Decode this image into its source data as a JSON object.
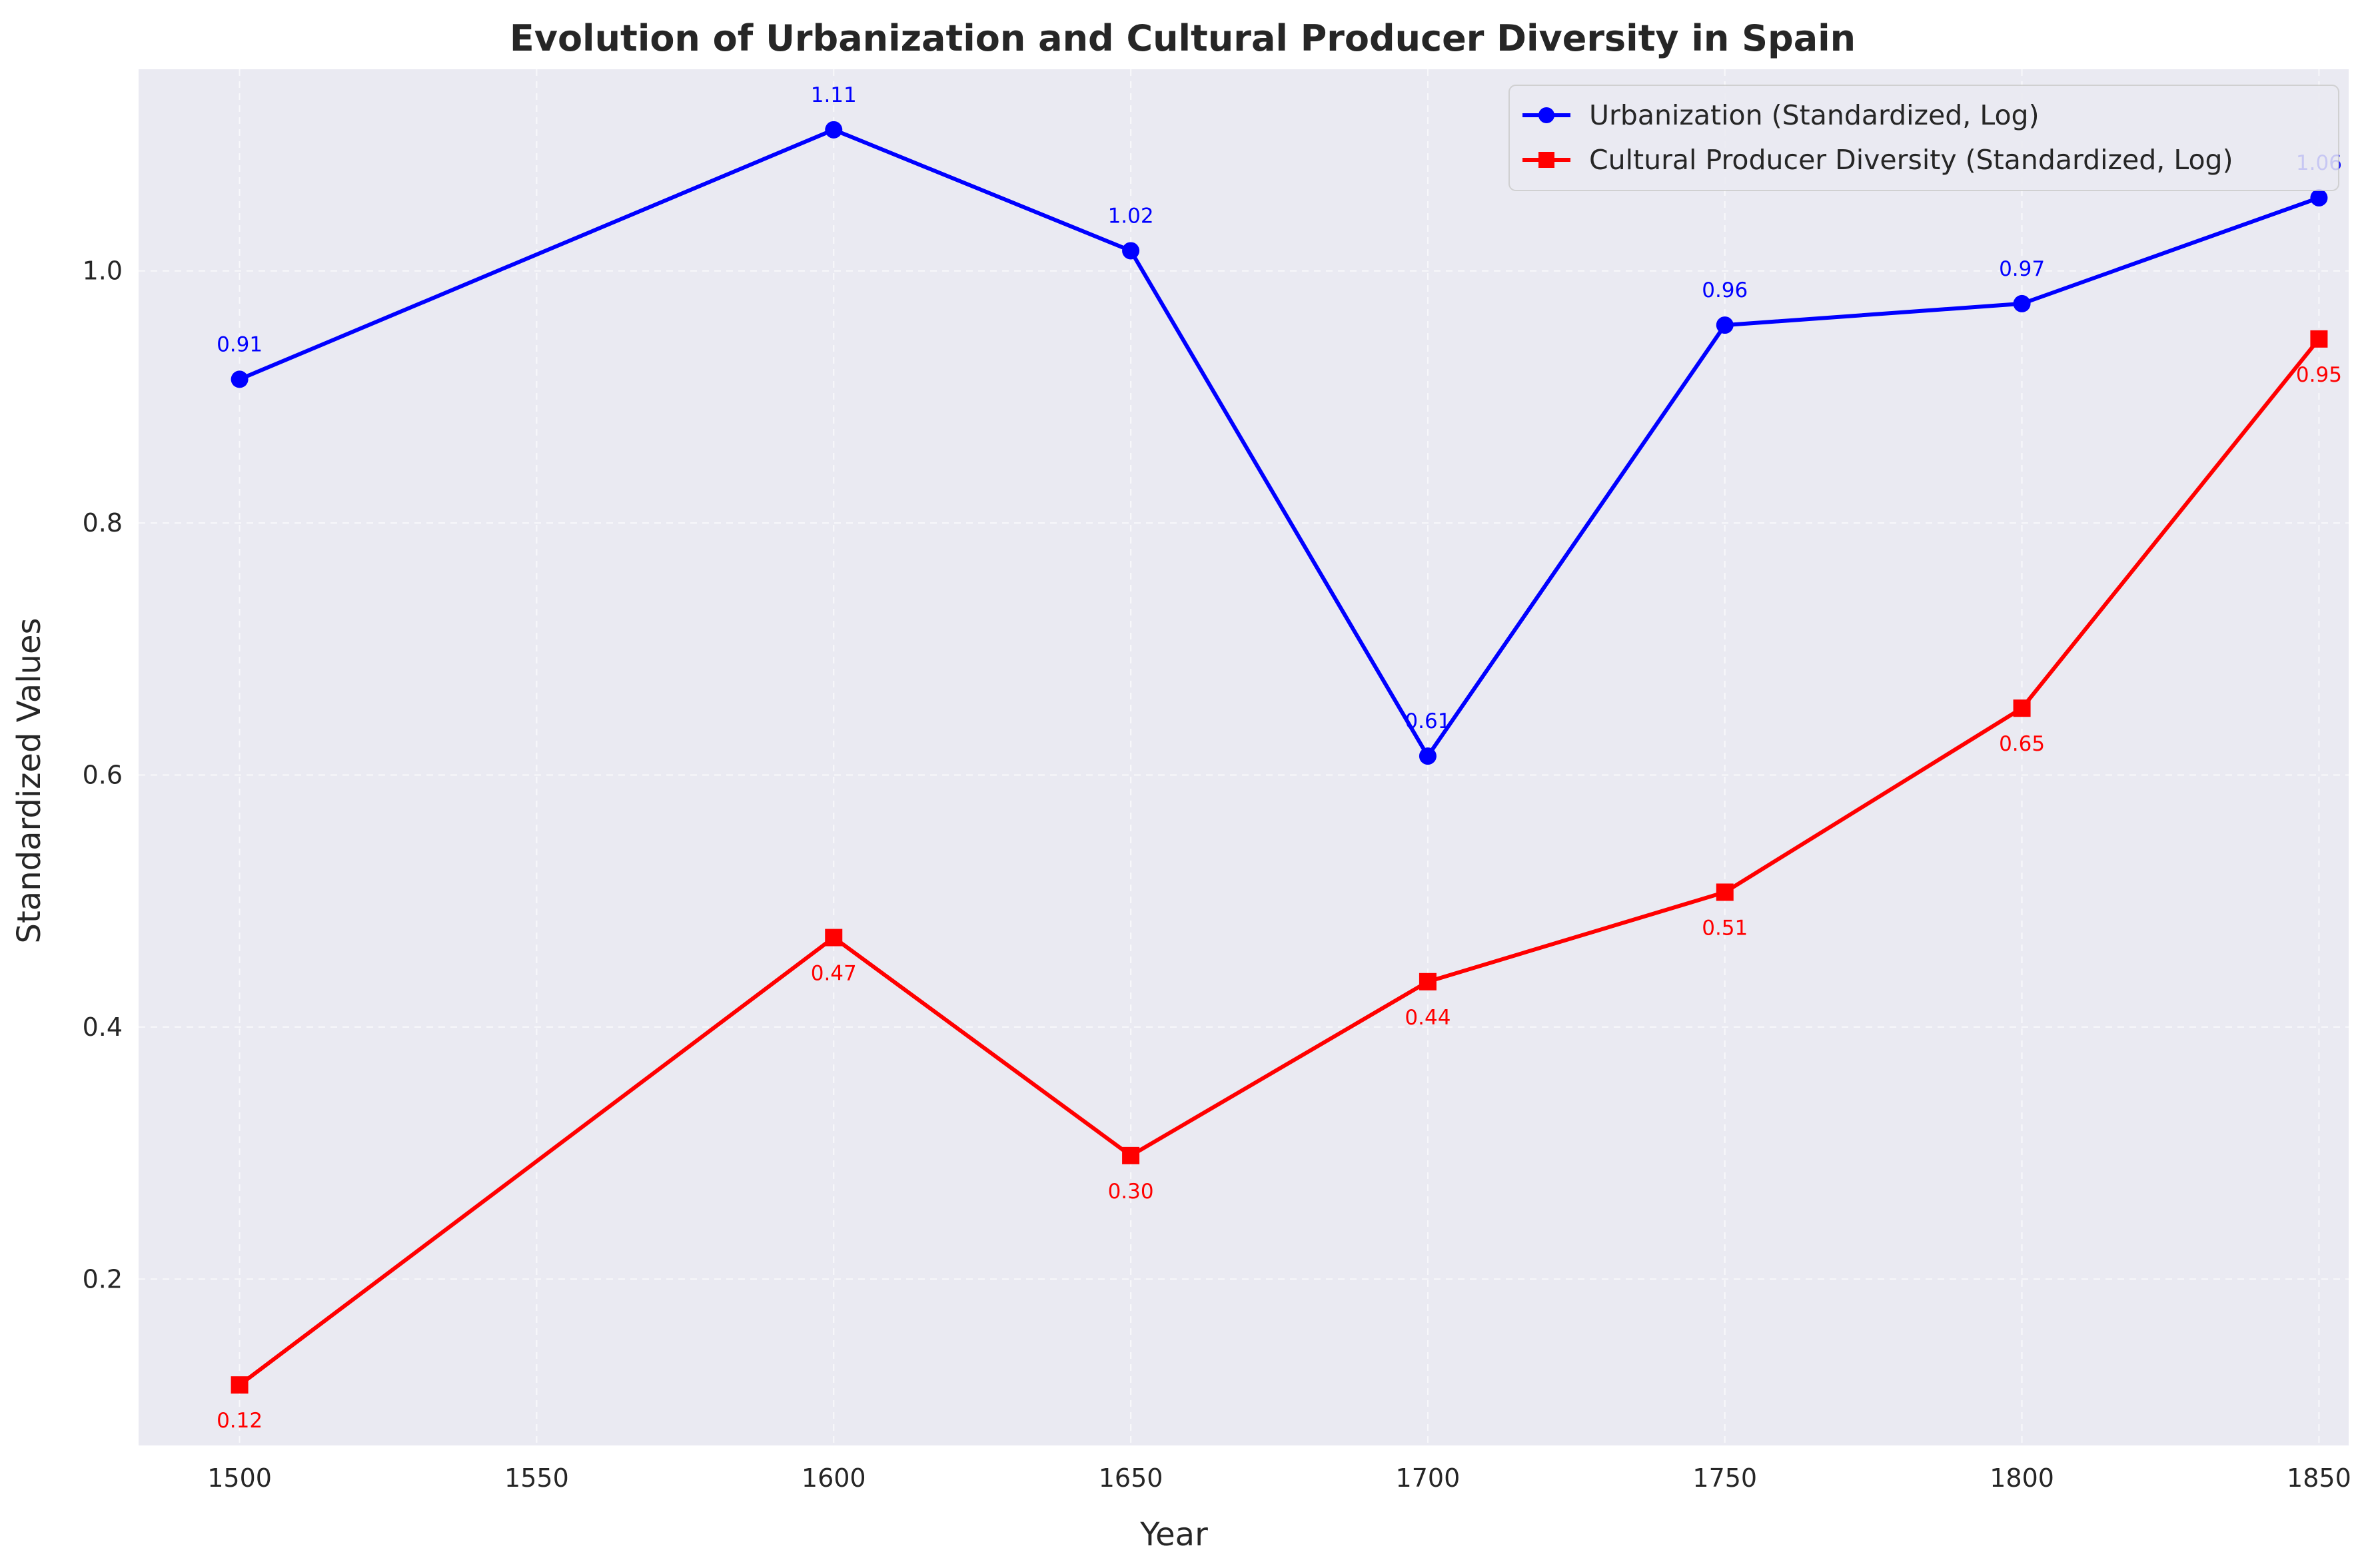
{
  "chart_data": {
    "type": "line",
    "title": "Evolution of Urbanization and Cultural Producer Diversity in Spain",
    "xlabel": "Year",
    "ylabel": "Standardized Values",
    "x": [
      1500,
      1600,
      1650,
      1700,
      1750,
      1800,
      1850
    ],
    "x_ticks": [
      1500,
      1550,
      1600,
      1650,
      1700,
      1750,
      1800,
      1850
    ],
    "x_tick_labels": [
      "1500",
      "1550",
      "1600",
      "1650",
      "1700",
      "1750",
      "1800",
      "1850"
    ],
    "xlim": [
      1483,
      1855
    ],
    "y_ticks": [
      0.2,
      0.4,
      0.6,
      0.8,
      1.0
    ],
    "y_tick_labels": [
      "0.2",
      "0.4",
      "0.6",
      "0.8",
      "1.0"
    ],
    "ylim": [
      0.068,
      1.16
    ],
    "grid": true,
    "legend_position": "top-right",
    "series": [
      {
        "name": "Urbanization (Standardized, Log)",
        "color": "#0000ff",
        "marker": "circle",
        "values": [
          0.914,
          1.112,
          1.016,
          0.615,
          0.957,
          0.974,
          1.058
        ],
        "labels": [
          "0.91",
          "1.11",
          "1.02",
          "0.61",
          "0.96",
          "0.97",
          "1.06"
        ],
        "label_position": "above"
      },
      {
        "name": "Cultural Producer Diversity (Standardized, Log)",
        "color": "#ff0000",
        "marker": "square",
        "values": [
          0.116,
          0.471,
          0.298,
          0.436,
          0.507,
          0.653,
          0.946
        ],
        "labels": [
          "0.12",
          "0.47",
          "0.30",
          "0.44",
          "0.51",
          "0.65",
          "0.95"
        ],
        "label_position": "below"
      }
    ]
  }
}
